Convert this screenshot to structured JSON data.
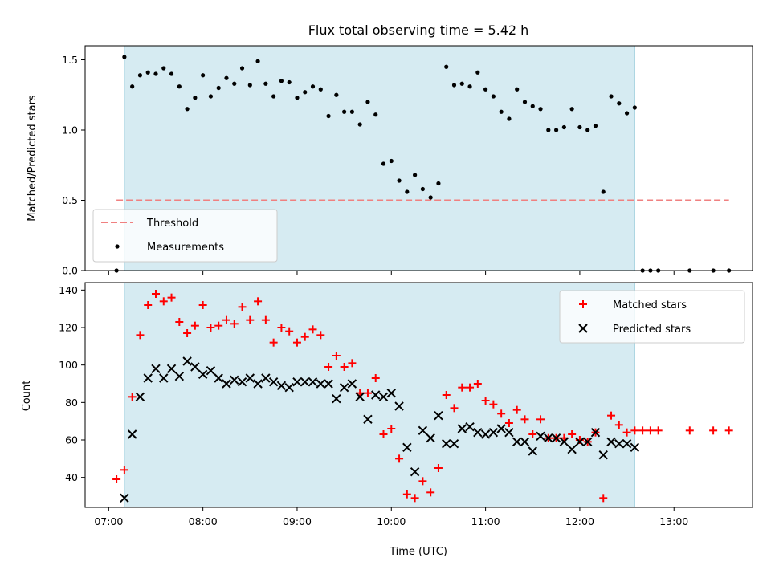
{
  "chart_data": [
    {
      "type": "scatter",
      "title": "Flux total observing time = 5.42 h",
      "xlabel": "",
      "ylabel": "Matched/Predicted stars",
      "ylim": [
        0,
        1.6
      ],
      "yticks": [
        "0.0",
        "0.5",
        "1.0",
        "1.5"
      ],
      "legend": {
        "placement": "lower-left",
        "entries": [
          "Threshold",
          "Measurements"
        ]
      },
      "observing_window": [
        "07:10",
        "12:35"
      ],
      "threshold": {
        "name": "Threshold",
        "value": 0.5,
        "x_range": [
          "07:05",
          "13:35"
        ],
        "color": "#f08080",
        "style": "dashed"
      },
      "series": [
        {
          "name": "Measurements",
          "marker": "dot",
          "color": "#000000",
          "points": [
            [
              "07:05",
              0.0
            ],
            [
              "07:10",
              1.52
            ],
            [
              "07:15",
              1.31
            ],
            [
              "07:20",
              1.39
            ],
            [
              "07:25",
              1.41
            ],
            [
              "07:30",
              1.4
            ],
            [
              "07:35",
              1.44
            ],
            [
              "07:40",
              1.4
            ],
            [
              "07:45",
              1.31
            ],
            [
              "07:50",
              1.15
            ],
            [
              "07:55",
              1.23
            ],
            [
              "08:00",
              1.39
            ],
            [
              "08:05",
              1.24
            ],
            [
              "08:10",
              1.3
            ],
            [
              "08:15",
              1.37
            ],
            [
              "08:20",
              1.33
            ],
            [
              "08:25",
              1.44
            ],
            [
              "08:30",
              1.32
            ],
            [
              "08:35",
              1.49
            ],
            [
              "08:40",
              1.33
            ],
            [
              "08:45",
              1.24
            ],
            [
              "08:50",
              1.35
            ],
            [
              "08:55",
              1.34
            ],
            [
              "09:00",
              1.23
            ],
            [
              "09:05",
              1.27
            ],
            [
              "09:10",
              1.31
            ],
            [
              "09:15",
              1.29
            ],
            [
              "09:20",
              1.1
            ],
            [
              "09:25",
              1.25
            ],
            [
              "09:30",
              1.13
            ],
            [
              "09:35",
              1.13
            ],
            [
              "09:40",
              1.04
            ],
            [
              "09:45",
              1.2
            ],
            [
              "09:50",
              1.11
            ],
            [
              "09:55",
              0.76
            ],
            [
              "10:00",
              0.78
            ],
            [
              "10:05",
              0.64
            ],
            [
              "10:10",
              0.56
            ],
            [
              "10:15",
              0.68
            ],
            [
              "10:20",
              0.58
            ],
            [
              "10:25",
              0.52
            ],
            [
              "10:30",
              0.62
            ],
            [
              "10:35",
              1.45
            ],
            [
              "10:40",
              1.32
            ],
            [
              "10:45",
              1.33
            ],
            [
              "10:50",
              1.31
            ],
            [
              "10:55",
              1.41
            ],
            [
              "11:00",
              1.29
            ],
            [
              "11:05",
              1.24
            ],
            [
              "11:10",
              1.13
            ],
            [
              "11:15",
              1.08
            ],
            [
              "11:20",
              1.29
            ],
            [
              "11:25",
              1.2
            ],
            [
              "11:30",
              1.17
            ],
            [
              "11:35",
              1.15
            ],
            [
              "11:40",
              1.0
            ],
            [
              "11:45",
              1.0
            ],
            [
              "11:50",
              1.02
            ],
            [
              "11:55",
              1.15
            ],
            [
              "12:00",
              1.02
            ],
            [
              "12:05",
              1.0
            ],
            [
              "12:10",
              1.03
            ],
            [
              "12:15",
              0.56
            ],
            [
              "12:20",
              1.24
            ],
            [
              "12:25",
              1.19
            ],
            [
              "12:30",
              1.12
            ],
            [
              "12:35",
              1.16
            ],
            [
              "12:40",
              0.0
            ],
            [
              "12:45",
              0.0
            ],
            [
              "12:50",
              0.0
            ],
            [
              "13:10",
              0.0
            ],
            [
              "13:25",
              0.0
            ],
            [
              "13:35",
              0.0
            ]
          ]
        }
      ]
    },
    {
      "type": "scatter",
      "title": "",
      "xlabel": "Time (UTC)",
      "ylabel": "Count",
      "ylim": [
        24,
        144
      ],
      "yticks": [
        "40",
        "60",
        "80",
        "100",
        "120",
        "140"
      ],
      "xlim": [
        "06:45",
        "13:50"
      ],
      "xticks": [
        "07:00",
        "08:00",
        "09:00",
        "10:00",
        "11:00",
        "12:00",
        "13:00"
      ],
      "legend": {
        "placement": "top-right",
        "entries": [
          "Matched stars",
          "Predicted stars"
        ]
      },
      "observing_window": [
        "07:10",
        "12:35"
      ],
      "series": [
        {
          "name": "Matched stars",
          "marker": "plus",
          "color": "#ff0000",
          "points": [
            [
              "07:05",
              39
            ],
            [
              "07:10",
              44
            ],
            [
              "07:15",
              83
            ],
            [
              "07:20",
              116
            ],
            [
              "07:25",
              132
            ],
            [
              "07:30",
              138
            ],
            [
              "07:35",
              134
            ],
            [
              "07:40",
              136
            ],
            [
              "07:45",
              123
            ],
            [
              "07:50",
              117
            ],
            [
              "07:55",
              121
            ],
            [
              "08:00",
              132
            ],
            [
              "08:05",
              120
            ],
            [
              "08:10",
              121
            ],
            [
              "08:15",
              124
            ],
            [
              "08:20",
              122
            ],
            [
              "08:25",
              131
            ],
            [
              "08:30",
              124
            ],
            [
              "08:35",
              134
            ],
            [
              "08:40",
              124
            ],
            [
              "08:45",
              112
            ],
            [
              "08:50",
              120
            ],
            [
              "08:55",
              118
            ],
            [
              "09:00",
              112
            ],
            [
              "09:05",
              115
            ],
            [
              "09:10",
              119
            ],
            [
              "09:15",
              116
            ],
            [
              "09:20",
              99
            ],
            [
              "09:25",
              105
            ],
            [
              "09:30",
              99
            ],
            [
              "09:35",
              101
            ],
            [
              "09:40",
              85
            ],
            [
              "09:45",
              85
            ],
            [
              "09:50",
              93
            ],
            [
              "09:55",
              63
            ],
            [
              "10:00",
              66
            ],
            [
              "10:05",
              50
            ],
            [
              "10:10",
              31
            ],
            [
              "10:15",
              29
            ],
            [
              "10:20",
              38
            ],
            [
              "10:25",
              32
            ],
            [
              "10:30",
              45
            ],
            [
              "10:35",
              84
            ],
            [
              "10:40",
              77
            ],
            [
              "10:45",
              88
            ],
            [
              "10:50",
              88
            ],
            [
              "10:55",
              90
            ],
            [
              "11:00",
              81
            ],
            [
              "11:05",
              79
            ],
            [
              "11:10",
              74
            ],
            [
              "11:15",
              69
            ],
            [
              "11:20",
              76
            ],
            [
              "11:25",
              71
            ],
            [
              "11:30",
              63
            ],
            [
              "11:35",
              71
            ],
            [
              "11:40",
              61
            ],
            [
              "11:45",
              61
            ],
            [
              "11:50",
              61
            ],
            [
              "11:55",
              63
            ],
            [
              "12:00",
              60
            ],
            [
              "12:05",
              59
            ],
            [
              "12:10",
              64
            ],
            [
              "12:15",
              29
            ],
            [
              "12:20",
              73
            ],
            [
              "12:25",
              68
            ],
            [
              "12:30",
              64
            ],
            [
              "12:35",
              65
            ],
            [
              "12:40",
              65
            ],
            [
              "12:45",
              65
            ],
            [
              "12:50",
              65
            ],
            [
              "13:10",
              65
            ],
            [
              "13:25",
              65
            ],
            [
              "13:35",
              65
            ]
          ]
        },
        {
          "name": "Predicted stars",
          "marker": "x",
          "color": "#000000",
          "points": [
            [
              "07:10",
              29
            ],
            [
              "07:15",
              63
            ],
            [
              "07:20",
              83
            ],
            [
              "07:25",
              93
            ],
            [
              "07:30",
              98
            ],
            [
              "07:35",
              93
            ],
            [
              "07:40",
              98
            ],
            [
              "07:45",
              94
            ],
            [
              "07:50",
              102
            ],
            [
              "07:55",
              99
            ],
            [
              "08:00",
              95
            ],
            [
              "08:05",
              97
            ],
            [
              "08:10",
              93
            ],
            [
              "08:15",
              90
            ],
            [
              "08:20",
              92
            ],
            [
              "08:25",
              91
            ],
            [
              "08:30",
              93
            ],
            [
              "08:35",
              90
            ],
            [
              "08:40",
              93
            ],
            [
              "08:45",
              91
            ],
            [
              "08:50",
              89
            ],
            [
              "08:55",
              88
            ],
            [
              "09:00",
              91
            ],
            [
              "09:05",
              91
            ],
            [
              "09:10",
              91
            ],
            [
              "09:15",
              90
            ],
            [
              "09:20",
              90
            ],
            [
              "09:25",
              82
            ],
            [
              "09:30",
              88
            ],
            [
              "09:35",
              90
            ],
            [
              "09:40",
              83
            ],
            [
              "09:45",
              71
            ],
            [
              "09:50",
              84
            ],
            [
              "09:55",
              83
            ],
            [
              "10:00",
              85
            ],
            [
              "10:05",
              78
            ],
            [
              "10:10",
              56
            ],
            [
              "10:15",
              43
            ],
            [
              "10:20",
              65
            ],
            [
              "10:25",
              61
            ],
            [
              "10:30",
              73
            ],
            [
              "10:35",
              58
            ],
            [
              "10:40",
              58
            ],
            [
              "10:45",
              66
            ],
            [
              "10:50",
              67
            ],
            [
              "10:55",
              64
            ],
            [
              "11:00",
              63
            ],
            [
              "11:05",
              64
            ],
            [
              "11:10",
              66
            ],
            [
              "11:15",
              64
            ],
            [
              "11:20",
              59
            ],
            [
              "11:25",
              59
            ],
            [
              "11:30",
              54
            ],
            [
              "11:35",
              62
            ],
            [
              "11:40",
              61
            ],
            [
              "11:45",
              61
            ],
            [
              "11:50",
              59
            ],
            [
              "11:55",
              55
            ],
            [
              "12:00",
              59
            ],
            [
              "12:05",
              59
            ],
            [
              "12:10",
              64
            ],
            [
              "12:15",
              52
            ],
            [
              "12:20",
              59
            ],
            [
              "12:25",
              58
            ],
            [
              "12:30",
              58
            ],
            [
              "12:35",
              56
            ]
          ]
        }
      ]
    }
  ],
  "colors": {
    "shade": "#add8e6",
    "threshold": "#f08080",
    "matched": "#ff0000",
    "predicted": "#000000",
    "measurement": "#000000"
  }
}
